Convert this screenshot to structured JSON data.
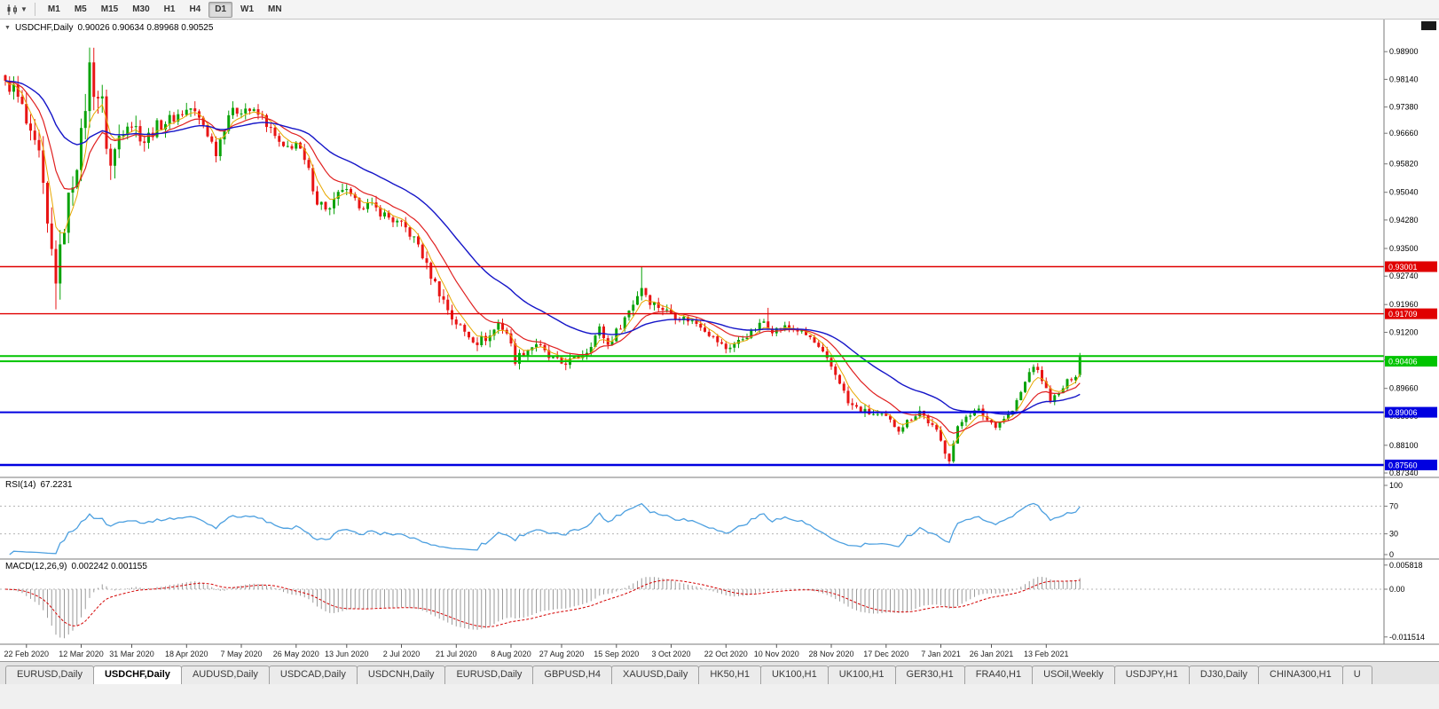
{
  "toolbar": {
    "timeframes": [
      "M1",
      "M5",
      "M15",
      "M30",
      "H1",
      "H4",
      "D1",
      "W1",
      "MN"
    ],
    "active_timeframe": "D1"
  },
  "chart": {
    "collapse_icon": "▼",
    "title": "USDCHF,Daily",
    "ohlc_text": "0.90026 0.90634 0.89968 0.90525",
    "rsi_label": "RSI(14)",
    "rsi_value": "67.2231",
    "macd_label": "MACD(12,26,9)",
    "macd_values": "0.002242 0.001155"
  },
  "chart_data": {
    "type": "candlestick",
    "symbol": "USDCHF",
    "timeframe": "Daily",
    "candle_count": 256,
    "last_candle": {
      "open": 0.90026,
      "high": 0.90634,
      "low": 0.89968,
      "close": 0.90525
    },
    "colors": {
      "up": "#0aa30a",
      "down": "#e81515",
      "ma_fast": "#e8a800",
      "ma_mid": "#e02020",
      "ma_slow": "#1515c8",
      "rsi": "#4da0e0",
      "macd_hist": "#9a9a9a",
      "macd_signal": "#d40000",
      "grid_dash": "#b4b4b4",
      "axis_text": "#000000",
      "separator": "#787878"
    },
    "ma_periods": {
      "fast": 5,
      "mid": 13,
      "slow": 34
    },
    "price_ticks": [
      "0.98900",
      "0.98140",
      "0.97380",
      "0.96660",
      "0.95820",
      "0.95040",
      "0.94280",
      "0.93500",
      "0.92740",
      "0.91960",
      "0.91200",
      "0.90440",
      "0.89660",
      "0.88900",
      "0.88100",
      "0.87340"
    ],
    "levels": [
      {
        "value": 0.93001,
        "label": "0.93001",
        "color": "#e00000",
        "width": 1.4
      },
      {
        "value": 0.91709,
        "label": "0.91709",
        "color": "#e00000",
        "width": 1.4
      },
      {
        "value": 0.9055,
        "label": "",
        "color": "#00c400",
        "width": 2
      },
      {
        "value": 0.90406,
        "label": "0.90406",
        "color": "#00c400",
        "width": 2
      },
      {
        "value": 0.89006,
        "label": "0.89006",
        "color": "#0000e0",
        "width": 2
      },
      {
        "value": 0.8756,
        "label": "0.87560",
        "color": "#0000e0",
        "width": 2.5
      }
    ],
    "rsi_ticks": [
      {
        "label": "100",
        "v": 100,
        "line": false
      },
      {
        "label": "70",
        "v": 70,
        "line": true
      },
      {
        "label": "30",
        "v": 30,
        "line": true
      },
      {
        "label": "0",
        "v": 0,
        "line": false
      }
    ],
    "macd_ticks": [
      {
        "label": "0.005818",
        "v": 0.005818,
        "line": false
      },
      {
        "label": "0.00",
        "v": 0,
        "line": true
      },
      {
        "label": "-0.011514",
        "v": -0.011514,
        "line": false
      }
    ],
    "date_ticks": [
      {
        "label": "22 Feb 2020",
        "i": 5
      },
      {
        "label": "12 Mar 2020",
        "i": 18
      },
      {
        "label": "31 Mar 2020",
        "i": 30
      },
      {
        "label": "18 Apr 2020",
        "i": 43
      },
      {
        "label": "7 May 2020",
        "i": 56
      },
      {
        "label": "26 May 2020",
        "i": 69
      },
      {
        "label": "13 Jun 2020",
        "i": 81
      },
      {
        "label": "2 Jul 2020",
        "i": 94
      },
      {
        "label": "21 Jul 2020",
        "i": 107
      },
      {
        "label": "8 Aug 2020",
        "i": 120
      },
      {
        "label": "27 Aug 2020",
        "i": 132
      },
      {
        "label": "15 Sep 2020",
        "i": 145
      },
      {
        "label": "3 Oct 2020",
        "i": 158
      },
      {
        "label": "22 Oct 2020",
        "i": 171
      },
      {
        "label": "10 Nov 2020",
        "i": 183
      },
      {
        "label": "28 Nov 2020",
        "i": 196
      },
      {
        "label": "17 Dec 2020",
        "i": 209
      },
      {
        "label": "7 Jan 2021",
        "i": 222
      },
      {
        "label": "26 Jan 2021",
        "i": 234
      },
      {
        "label": "13 Feb 2021",
        "i": 247
      }
    ],
    "close_anchors": [
      [
        0,
        0.98
      ],
      [
        2,
        0.9788
      ],
      [
        4,
        0.9733
      ],
      [
        6,
        0.9646
      ],
      [
        8,
        0.9598
      ],
      [
        10,
        0.94
      ],
      [
        12,
        0.9275
      ],
      [
        13,
        0.933
      ],
      [
        14,
        0.942
      ],
      [
        16,
        0.954
      ],
      [
        18,
        0.965
      ],
      [
        20,
        0.9845
      ],
      [
        21,
        0.9792
      ],
      [
        23,
        0.9745
      ],
      [
        24,
        0.964
      ],
      [
        25,
        0.9575
      ],
      [
        27,
        0.966
      ],
      [
        29,
        0.9705
      ],
      [
        31,
        0.968
      ],
      [
        33,
        0.9645
      ],
      [
        36,
        0.9685
      ],
      [
        40,
        0.971
      ],
      [
        44,
        0.9735
      ],
      [
        47,
        0.969
      ],
      [
        50,
        0.9615
      ],
      [
        53,
        0.972
      ],
      [
        57,
        0.9735
      ],
      [
        61,
        0.971
      ],
      [
        64,
        0.9655
      ],
      [
        66,
        0.962
      ],
      [
        69,
        0.964
      ],
      [
        72,
        0.956
      ],
      [
        74,
        0.948
      ],
      [
        77,
        0.9455
      ],
      [
        80,
        0.9515
      ],
      [
        83,
        0.9475
      ],
      [
        87,
        0.9465
      ],
      [
        91,
        0.9435
      ],
      [
        95,
        0.9405
      ],
      [
        98,
        0.936
      ],
      [
        100,
        0.93
      ],
      [
        103,
        0.923
      ],
      [
        106,
        0.916
      ],
      [
        109,
        0.912
      ],
      [
        112,
        0.9095
      ],
      [
        115,
        0.911
      ],
      [
        117,
        0.9145
      ],
      [
        119,
        0.912
      ],
      [
        121,
        0.9045
      ],
      [
        123,
        0.9065
      ],
      [
        126,
        0.909
      ],
      [
        129,
        0.905
      ],
      [
        132,
        0.9035
      ],
      [
        135,
        0.9045
      ],
      [
        138,
        0.907
      ],
      [
        141,
        0.913
      ],
      [
        143,
        0.9085
      ],
      [
        146,
        0.914
      ],
      [
        149,
        0.92
      ],
      [
        151,
        0.9245
      ],
      [
        153,
        0.9205
      ],
      [
        156,
        0.9185
      ],
      [
        159,
        0.9165
      ],
      [
        162,
        0.9155
      ],
      [
        165,
        0.914
      ],
      [
        168,
        0.9105
      ],
      [
        171,
        0.9075
      ],
      [
        174,
        0.9095
      ],
      [
        177,
        0.912
      ],
      [
        180,
        0.915
      ],
      [
        182,
        0.9125
      ],
      [
        185,
        0.9135
      ],
      [
        188,
        0.9125
      ],
      [
        191,
        0.9105
      ],
      [
        194,
        0.906
      ],
      [
        196,
        0.9025
      ],
      [
        198,
        0.8985
      ],
      [
        200,
        0.8925
      ],
      [
        203,
        0.8905
      ],
      [
        206,
        0.8895
      ],
      [
        209,
        0.8885
      ],
      [
        212,
        0.8855
      ],
      [
        215,
        0.8885
      ],
      [
        217,
        0.8905
      ],
      [
        219,
        0.8875
      ],
      [
        221,
        0.8845
      ],
      [
        223,
        0.8795
      ],
      [
        224,
        0.8775
      ],
      [
        226,
        0.8855
      ],
      [
        228,
        0.8895
      ],
      [
        231,
        0.8905
      ],
      [
        233,
        0.888
      ],
      [
        235,
        0.8865
      ],
      [
        237,
        0.8885
      ],
      [
        239,
        0.8905
      ],
      [
        241,
        0.8955
      ],
      [
        243,
        0.901
      ],
      [
        244,
        0.903
      ],
      [
        246,
        0.899
      ],
      [
        248,
        0.8935
      ],
      [
        250,
        0.895
      ],
      [
        252,
        0.8985
      ],
      [
        254,
        0.9003
      ],
      [
        255,
        0.9052
      ]
    ],
    "vol_anchors": [
      [
        0,
        0.0045
      ],
      [
        5,
        0.0075
      ],
      [
        10,
        0.0105
      ],
      [
        15,
        0.01
      ],
      [
        22,
        0.0095
      ],
      [
        28,
        0.007
      ],
      [
        35,
        0.005
      ],
      [
        45,
        0.004
      ],
      [
        60,
        0.0035
      ],
      [
        75,
        0.004
      ],
      [
        95,
        0.0035
      ],
      [
        105,
        0.004
      ],
      [
        120,
        0.0035
      ],
      [
        140,
        0.003
      ],
      [
        152,
        0.0032
      ],
      [
        170,
        0.0025
      ],
      [
        185,
        0.0022
      ],
      [
        200,
        0.0028
      ],
      [
        215,
        0.0025
      ],
      [
        224,
        0.003
      ],
      [
        235,
        0.002
      ],
      [
        245,
        0.0022
      ],
      [
        255,
        0.0018
      ]
    ],
    "special_candles": [
      {
        "i": 12,
        "low": 0.9183
      },
      {
        "i": 20,
        "high": 0.9901
      },
      {
        "i": 151,
        "high": 0.9301
      },
      {
        "i": 181,
        "high": 0.9187
      },
      {
        "i": 224,
        "low": 0.8757
      }
    ]
  },
  "tabs": [
    {
      "label": "EURUSD,Daily",
      "active": false
    },
    {
      "label": "USDCHF,Daily",
      "active": true
    },
    {
      "label": "AUDUSD,Daily",
      "active": false
    },
    {
      "label": "USDCAD,Daily",
      "active": false
    },
    {
      "label": "USDCNH,Daily",
      "active": false
    },
    {
      "label": "EURUSD,Daily",
      "active": false
    },
    {
      "label": "GBPUSD,H4",
      "active": false
    },
    {
      "label": "XAUUSD,Daily",
      "active": false
    },
    {
      "label": "HK50,H1",
      "active": false
    },
    {
      "label": "UK100,H1",
      "active": false
    },
    {
      "label": "UK100,H1",
      "active": false
    },
    {
      "label": "GER30,H1",
      "active": false
    },
    {
      "label": "FRA40,H1",
      "active": false
    },
    {
      "label": "USOil,Weekly",
      "active": false
    },
    {
      "label": "USDJPY,H1",
      "active": false
    },
    {
      "label": "DJ30,Daily",
      "active": false
    },
    {
      "label": "CHINA300,H1",
      "active": false
    },
    {
      "label": "U",
      "active": false
    }
  ]
}
